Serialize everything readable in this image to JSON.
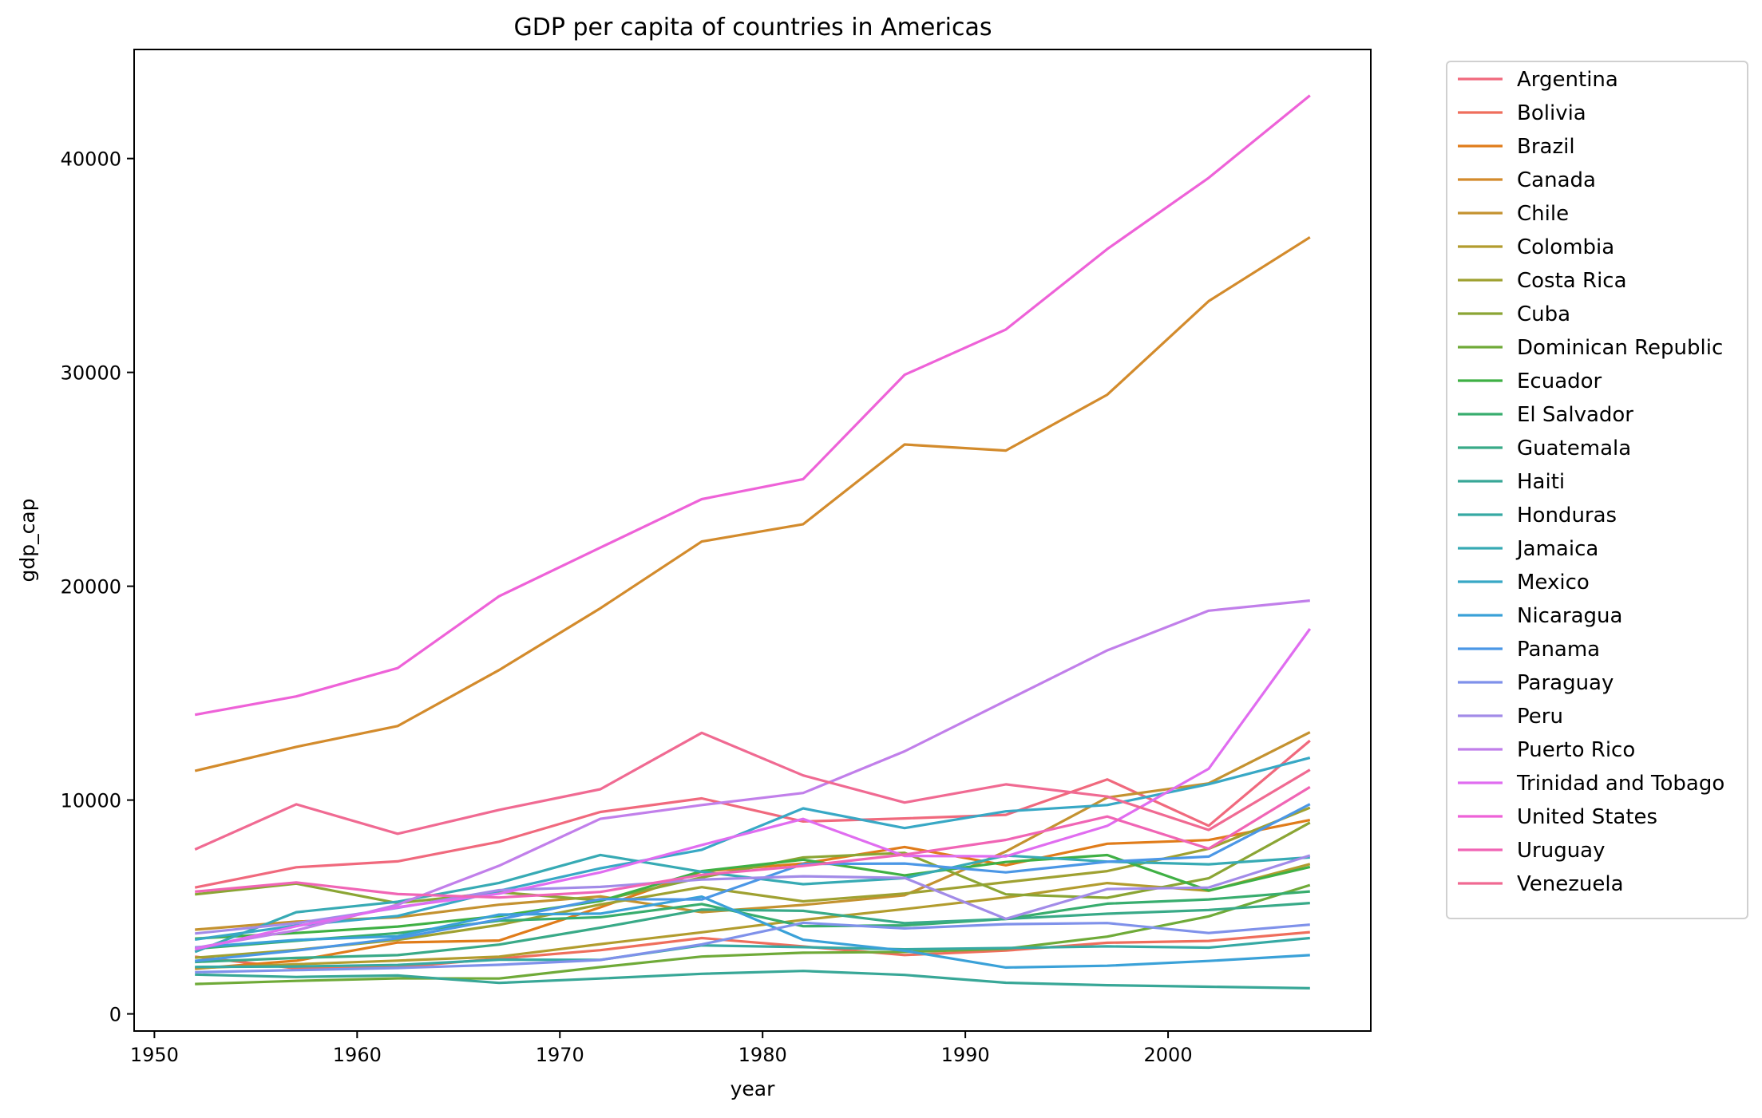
{
  "chart_data": {
    "type": "line",
    "title": "GDP per capita of countries in Americas",
    "xlabel": "year",
    "ylabel": "gdp_cap",
    "xlim": [
      1949,
      2010
    ],
    "ylim": [
      -800,
      45100
    ],
    "x_ticks": [
      1950,
      1960,
      1970,
      1980,
      1990,
      2000
    ],
    "y_ticks": [
      0,
      10000,
      20000,
      30000,
      40000
    ],
    "grid": false,
    "legend_position": "outside-right",
    "x": [
      1952,
      1957,
      1962,
      1967,
      1972,
      1977,
      1982,
      1987,
      1992,
      1997,
      2002,
      2007
    ],
    "series": [
      {
        "name": "Argentina",
        "color": "#f0697d",
        "values": [
          5911,
          6857,
          7133,
          8053,
          9443,
          10079,
          8998,
          9140,
          9308,
          10967,
          8798,
          12779
        ]
      },
      {
        "name": "Bolivia",
        "color": "#ef6e5c",
        "values": [
          2677,
          2128,
          2181,
          2587,
          2980,
          3548,
          3157,
          2754,
          2962,
          3326,
          3413,
          3822
        ]
      },
      {
        "name": "Brazil",
        "color": "#e07c1a",
        "values": [
          2109,
          2487,
          3337,
          3430,
          4985,
          6660,
          7031,
          7807,
          6950,
          7958,
          8131,
          9066
        ]
      },
      {
        "name": "Canada",
        "color": "#d38b2c",
        "values": [
          11367,
          12490,
          13462,
          16077,
          18971,
          22091,
          22899,
          26627,
          26343,
          28955,
          33329,
          36319
        ]
      },
      {
        "name": "Chile",
        "color": "#c49230",
        "values": [
          3940,
          4316,
          4519,
          5107,
          5494,
          4757,
          5096,
          5547,
          7596,
          10118,
          10779,
          13172
        ]
      },
      {
        "name": "Colombia",
        "color": "#b29c2e",
        "values": [
          2144,
          2324,
          2492,
          2679,
          3265,
          3816,
          4398,
          4903,
          5445,
          6117,
          5755,
          7007
        ]
      },
      {
        "name": "Costa Rica",
        "color": "#9fa131",
        "values": [
          2627,
          2990,
          3461,
          4162,
          5118,
          5927,
          5263,
          5629,
          6161,
          6677,
          7723,
          9645
        ]
      },
      {
        "name": "Cuba",
        "color": "#8ba534",
        "values": [
          5587,
          6093,
          5181,
          5690,
          5306,
          6380,
          7317,
          7533,
          5593,
          5432,
          6341,
          8948
        ]
      },
      {
        "name": "Dominican Republic",
        "color": "#6faa38",
        "values": [
          1398,
          1544,
          1662,
          1654,
          2190,
          2681,
          2862,
          2899,
          3045,
          3614,
          4564,
          6025
        ]
      },
      {
        "name": "Ecuador",
        "color": "#3fb044",
        "values": [
          3522,
          3781,
          4086,
          4579,
          5280,
          6679,
          7213,
          6482,
          7104,
          7429,
          5773,
          6873
        ]
      },
      {
        "name": "El Salvador",
        "color": "#38ad6e",
        "values": [
          3048,
          3421,
          3777,
          4359,
          4520,
          5138,
          4098,
          4141,
          4444,
          5154,
          5352,
          5728
        ]
      },
      {
        "name": "Guatemala",
        "color": "#39aa88",
        "values": [
          2428,
          2617,
          2750,
          3243,
          4031,
          4880,
          4820,
          4246,
          4439,
          4684,
          4858,
          5186
        ]
      },
      {
        "name": "Haiti",
        "color": "#38a797",
        "values": [
          1840,
          1726,
          1797,
          1452,
          1654,
          1874,
          2011,
          1823,
          1456,
          1342,
          1270,
          1202
        ]
      },
      {
        "name": "Honduras",
        "color": "#36a9a3",
        "values": [
          2195,
          2220,
          2291,
          2538,
          2529,
          3203,
          3121,
          3023,
          3082,
          3160,
          3099,
          3548
        ]
      },
      {
        "name": "Jamaica",
        "color": "#37aab4",
        "values": [
          2899,
          4757,
          5246,
          6125,
          7434,
          6650,
          6068,
          6351,
          7405,
          7122,
          6995,
          7321
        ]
      },
      {
        "name": "Mexico",
        "color": "#38a8c5",
        "values": [
          3478,
          4132,
          4582,
          5755,
          6809,
          7675,
          9611,
          8688,
          9472,
          9767,
          10742,
          11978
        ]
      },
      {
        "name": "Nicaragua",
        "color": "#3aa1d8",
        "values": [
          3112,
          3457,
          3634,
          4643,
          4689,
          5486,
          3470,
          2955,
          2171,
          2253,
          2475,
          2749
        ]
      },
      {
        "name": "Panama",
        "color": "#4b97e6",
        "values": [
          2480,
          2961,
          3536,
          4421,
          5364,
          5351,
          7010,
          7034,
          6619,
          7114,
          7357,
          9809
        ]
      },
      {
        "name": "Paraguay",
        "color": "#7f91ea",
        "values": [
          1952,
          2046,
          2148,
          2299,
          2523,
          3248,
          4259,
          3999,
          4197,
          4248,
          3784,
          4173
        ]
      },
      {
        "name": "Peru",
        "color": "#a28be8",
        "values": [
          3759,
          4245,
          4957,
          5788,
          5938,
          6281,
          6435,
          6361,
          4446,
          5838,
          5909,
          7409
        ]
      },
      {
        "name": "Puerto Rico",
        "color": "#c17fea",
        "values": [
          3082,
          3908,
          5108,
          6929,
          9123,
          9770,
          10331,
          12281,
          14642,
          16999,
          18856,
          19329
        ]
      },
      {
        "name": "Trinidad and Tobago",
        "color": "#e06df0",
        "values": [
          3023,
          4100,
          4997,
          5621,
          6619,
          7899,
          9119,
          7389,
          7370,
          8793,
          11461,
          18009
        ]
      },
      {
        "name": "United States",
        "color": "#ee62d8",
        "values": [
          13990,
          14847,
          16173,
          19530,
          21806,
          24073,
          25010,
          29884,
          32004,
          35767,
          39097,
          42952
        ]
      },
      {
        "name": "Uruguay",
        "color": "#f065b5",
        "values": [
          5717,
          6150,
          5603,
          5445,
          5703,
          6504,
          6920,
          7452,
          8137,
          9231,
          7727,
          10611
        ]
      },
      {
        "name": "Venezuela",
        "color": "#f06a92",
        "values": [
          7690,
          9803,
          8423,
          9541,
          10506,
          13144,
          11152,
          9884,
          10734,
          10165,
          8605,
          11416
        ]
      }
    ]
  }
}
